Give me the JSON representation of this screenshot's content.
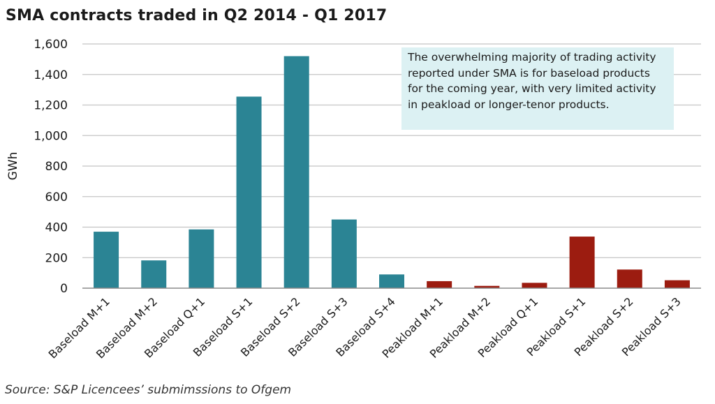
{
  "chart_data": {
    "type": "bar",
    "title": "SMA contracts traded in Q2 2014 - Q1 2017",
    "ylabel": "GWh",
    "xlabel": "",
    "ylim": [
      0,
      1600
    ],
    "yticks": [
      0,
      200,
      400,
      600,
      800,
      1000,
      1200,
      1400,
      1600
    ],
    "ytick_labels": [
      "0",
      "200",
      "400",
      "600",
      "800",
      "1,000",
      "1,200",
      "1,400",
      "1,600"
    ],
    "grid": true,
    "categories": [
      "Baseload M+1",
      "Baseload M+2",
      "Baseload Q+1",
      "Baseload S+1",
      "Baseload S+2",
      "Baseload S+3",
      "Baseload S+4",
      "Peakload M+1",
      "Peakload M+2",
      "Peakload Q+1",
      "Peakload S+1",
      "Peakload S+2",
      "Peakload S+3"
    ],
    "values": [
      370,
      182,
      385,
      1255,
      1520,
      450,
      90,
      46,
      15,
      35,
      338,
      122,
      52
    ],
    "colors": {
      "Baseload": "#2b8494",
      "Peakload": "#9c1c10"
    },
    "annotation": "The overwhelming majority of trading activity reported under SMA is for baseload products for the coming year, with very limited activity in peakload or longer-tenor products.",
    "source": "Source: S&P Licencees’ submimssions to Ofgem"
  }
}
